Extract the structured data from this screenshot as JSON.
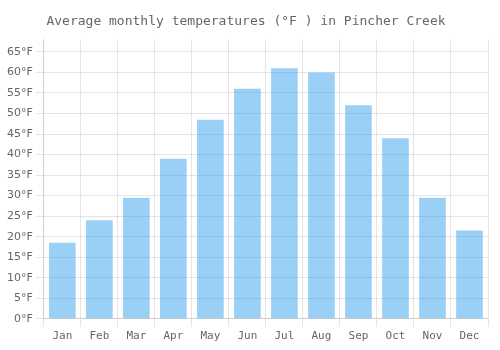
{
  "chart_data": {
    "type": "bar",
    "title": "Average monthly temperatures (°F ) in Pincher Creek",
    "categories": [
      "Jan",
      "Feb",
      "Mar",
      "Apr",
      "May",
      "Jun",
      "Jul",
      "Aug",
      "Sep",
      "Oct",
      "Nov",
      "Dec"
    ],
    "values": [
      18.5,
      24,
      29.5,
      39,
      48.5,
      56,
      61,
      60,
      52,
      44,
      29.5,
      21.5
    ],
    "ylim": [
      0,
      68
    ],
    "yticks": [
      {
        "value": 0,
        "label": "0°F"
      },
      {
        "value": 5,
        "label": "5°F"
      },
      {
        "value": 10,
        "label": "10°F"
      },
      {
        "value": 15,
        "label": "15°F"
      },
      {
        "value": 20,
        "label": "20°F"
      },
      {
        "value": 25,
        "label": "25°F"
      },
      {
        "value": 30,
        "label": "30°F"
      },
      {
        "value": 35,
        "label": "35°F"
      },
      {
        "value": 40,
        "label": "40°F"
      },
      {
        "value": 45,
        "label": "45°F"
      },
      {
        "value": 50,
        "label": "50°F"
      },
      {
        "value": 55,
        "label": "55°F"
      },
      {
        "value": 60,
        "label": "60°F"
      },
      {
        "value": 65,
        "label": "65°F"
      }
    ],
    "grid": true
  }
}
